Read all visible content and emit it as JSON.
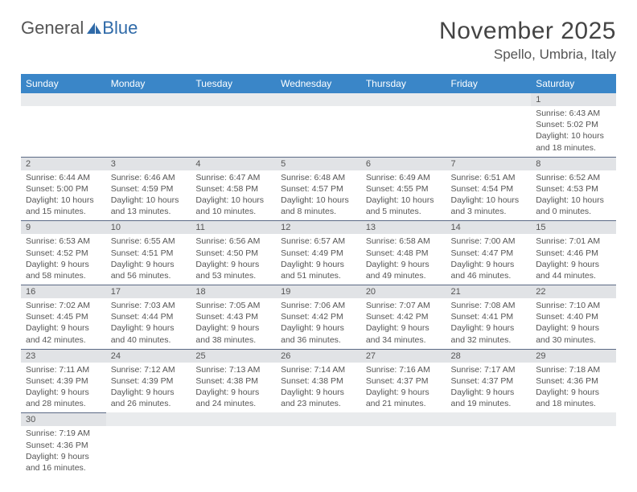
{
  "brand": {
    "part1": "General",
    "part2": "Blue",
    "logo_fill": "#2f6aa8"
  },
  "title": "November 2025",
  "location": "Spello, Umbria, Italy",
  "header_bg": "#3a86c8",
  "header_text": "#ffffff",
  "daynum_bg": "#e1e3e6",
  "daynum_border": "#5b6a85",
  "cell_text": "#555555",
  "background": "#ffffff",
  "weekdays": [
    "Sunday",
    "Monday",
    "Tuesday",
    "Wednesday",
    "Thursday",
    "Friday",
    "Saturday"
  ],
  "weeks": [
    [
      {
        "blank": true
      },
      {
        "blank": true
      },
      {
        "blank": true
      },
      {
        "blank": true
      },
      {
        "blank": true
      },
      {
        "blank": true
      },
      {
        "day": "1",
        "sunrise": "Sunrise: 6:43 AM",
        "sunset": "Sunset: 5:02 PM",
        "daylight": "Daylight: 10 hours and 18 minutes."
      }
    ],
    [
      {
        "day": "2",
        "sunrise": "Sunrise: 6:44 AM",
        "sunset": "Sunset: 5:00 PM",
        "daylight": "Daylight: 10 hours and 15 minutes."
      },
      {
        "day": "3",
        "sunrise": "Sunrise: 6:46 AM",
        "sunset": "Sunset: 4:59 PM",
        "daylight": "Daylight: 10 hours and 13 minutes."
      },
      {
        "day": "4",
        "sunrise": "Sunrise: 6:47 AM",
        "sunset": "Sunset: 4:58 PM",
        "daylight": "Daylight: 10 hours and 10 minutes."
      },
      {
        "day": "5",
        "sunrise": "Sunrise: 6:48 AM",
        "sunset": "Sunset: 4:57 PM",
        "daylight": "Daylight: 10 hours and 8 minutes."
      },
      {
        "day": "6",
        "sunrise": "Sunrise: 6:49 AM",
        "sunset": "Sunset: 4:55 PM",
        "daylight": "Daylight: 10 hours and 5 minutes."
      },
      {
        "day": "7",
        "sunrise": "Sunrise: 6:51 AM",
        "sunset": "Sunset: 4:54 PM",
        "daylight": "Daylight: 10 hours and 3 minutes."
      },
      {
        "day": "8",
        "sunrise": "Sunrise: 6:52 AM",
        "sunset": "Sunset: 4:53 PM",
        "daylight": "Daylight: 10 hours and 0 minutes."
      }
    ],
    [
      {
        "day": "9",
        "sunrise": "Sunrise: 6:53 AM",
        "sunset": "Sunset: 4:52 PM",
        "daylight": "Daylight: 9 hours and 58 minutes."
      },
      {
        "day": "10",
        "sunrise": "Sunrise: 6:55 AM",
        "sunset": "Sunset: 4:51 PM",
        "daylight": "Daylight: 9 hours and 56 minutes."
      },
      {
        "day": "11",
        "sunrise": "Sunrise: 6:56 AM",
        "sunset": "Sunset: 4:50 PM",
        "daylight": "Daylight: 9 hours and 53 minutes."
      },
      {
        "day": "12",
        "sunrise": "Sunrise: 6:57 AM",
        "sunset": "Sunset: 4:49 PM",
        "daylight": "Daylight: 9 hours and 51 minutes."
      },
      {
        "day": "13",
        "sunrise": "Sunrise: 6:58 AM",
        "sunset": "Sunset: 4:48 PM",
        "daylight": "Daylight: 9 hours and 49 minutes."
      },
      {
        "day": "14",
        "sunrise": "Sunrise: 7:00 AM",
        "sunset": "Sunset: 4:47 PM",
        "daylight": "Daylight: 9 hours and 46 minutes."
      },
      {
        "day": "15",
        "sunrise": "Sunrise: 7:01 AM",
        "sunset": "Sunset: 4:46 PM",
        "daylight": "Daylight: 9 hours and 44 minutes."
      }
    ],
    [
      {
        "day": "16",
        "sunrise": "Sunrise: 7:02 AM",
        "sunset": "Sunset: 4:45 PM",
        "daylight": "Daylight: 9 hours and 42 minutes."
      },
      {
        "day": "17",
        "sunrise": "Sunrise: 7:03 AM",
        "sunset": "Sunset: 4:44 PM",
        "daylight": "Daylight: 9 hours and 40 minutes."
      },
      {
        "day": "18",
        "sunrise": "Sunrise: 7:05 AM",
        "sunset": "Sunset: 4:43 PM",
        "daylight": "Daylight: 9 hours and 38 minutes."
      },
      {
        "day": "19",
        "sunrise": "Sunrise: 7:06 AM",
        "sunset": "Sunset: 4:42 PM",
        "daylight": "Daylight: 9 hours and 36 minutes."
      },
      {
        "day": "20",
        "sunrise": "Sunrise: 7:07 AM",
        "sunset": "Sunset: 4:42 PM",
        "daylight": "Daylight: 9 hours and 34 minutes."
      },
      {
        "day": "21",
        "sunrise": "Sunrise: 7:08 AM",
        "sunset": "Sunset: 4:41 PM",
        "daylight": "Daylight: 9 hours and 32 minutes."
      },
      {
        "day": "22",
        "sunrise": "Sunrise: 7:10 AM",
        "sunset": "Sunset: 4:40 PM",
        "daylight": "Daylight: 9 hours and 30 minutes."
      }
    ],
    [
      {
        "day": "23",
        "sunrise": "Sunrise: 7:11 AM",
        "sunset": "Sunset: 4:39 PM",
        "daylight": "Daylight: 9 hours and 28 minutes."
      },
      {
        "day": "24",
        "sunrise": "Sunrise: 7:12 AM",
        "sunset": "Sunset: 4:39 PM",
        "daylight": "Daylight: 9 hours and 26 minutes."
      },
      {
        "day": "25",
        "sunrise": "Sunrise: 7:13 AM",
        "sunset": "Sunset: 4:38 PM",
        "daylight": "Daylight: 9 hours and 24 minutes."
      },
      {
        "day": "26",
        "sunrise": "Sunrise: 7:14 AM",
        "sunset": "Sunset: 4:38 PM",
        "daylight": "Daylight: 9 hours and 23 minutes."
      },
      {
        "day": "27",
        "sunrise": "Sunrise: 7:16 AM",
        "sunset": "Sunset: 4:37 PM",
        "daylight": "Daylight: 9 hours and 21 minutes."
      },
      {
        "day": "28",
        "sunrise": "Sunrise: 7:17 AM",
        "sunset": "Sunset: 4:37 PM",
        "daylight": "Daylight: 9 hours and 19 minutes."
      },
      {
        "day": "29",
        "sunrise": "Sunrise: 7:18 AM",
        "sunset": "Sunset: 4:36 PM",
        "daylight": "Daylight: 9 hours and 18 minutes."
      }
    ],
    [
      {
        "day": "30",
        "sunrise": "Sunrise: 7:19 AM",
        "sunset": "Sunset: 4:36 PM",
        "daylight": "Daylight: 9 hours and 16 minutes."
      },
      {
        "blank": true
      },
      {
        "blank": true
      },
      {
        "blank": true
      },
      {
        "blank": true
      },
      {
        "blank": true
      },
      {
        "blank": true
      }
    ]
  ]
}
